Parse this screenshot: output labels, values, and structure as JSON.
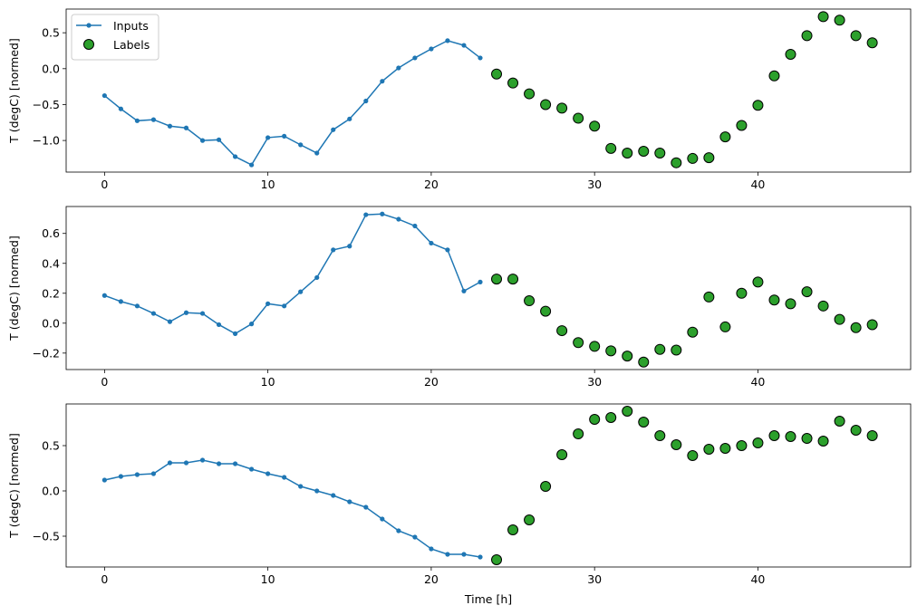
{
  "chart_data": [
    {
      "type": "line+scatter",
      "ylabel": "T (degC) [normed]",
      "xlabel": "",
      "xlim": [
        -2.35,
        49.35
      ],
      "ylim": [
        -1.44,
        0.83
      ],
      "xticks": [
        0,
        10,
        20,
        30,
        40
      ],
      "yticks": [
        -1.0,
        -0.5,
        0.0,
        0.5
      ],
      "legend": {
        "placement": "top-left",
        "entries": [
          "Inputs",
          "Labels"
        ]
      },
      "series": [
        {
          "name": "Inputs",
          "x_start": 0,
          "color": "#1f77b4",
          "values": [
            -0.375,
            -0.56,
            -0.725,
            -0.71,
            -0.8,
            -0.825,
            -1.0,
            -0.99,
            -1.225,
            -1.34,
            -0.96,
            -0.94,
            -1.06,
            -1.175,
            -0.85,
            -0.7,
            -0.45,
            -0.175,
            0.01,
            0.15,
            0.275,
            0.39,
            0.325,
            0.15
          ]
        },
        {
          "name": "Labels",
          "x_start": 24,
          "color": "#2ca02c",
          "values": [
            -0.075,
            -0.2,
            -0.35,
            -0.5,
            -0.55,
            -0.69,
            -0.8,
            -1.11,
            -1.175,
            -1.15,
            -1.175,
            -1.31,
            -1.25,
            -1.24,
            -0.95,
            -0.79,
            -0.51,
            -0.1,
            0.2,
            0.46,
            0.725,
            0.675,
            0.46,
            0.36
          ]
        }
      ]
    },
    {
      "type": "line+scatter",
      "ylabel": "T (degC) [normed]",
      "xlabel": "",
      "xlim": [
        -2.35,
        49.35
      ],
      "ylim": [
        -0.31,
        0.78
      ],
      "xticks": [
        0,
        10,
        20,
        30,
        40
      ],
      "yticks": [
        -0.2,
        0.0,
        0.2,
        0.4,
        0.6
      ],
      "series": [
        {
          "name": "Inputs",
          "x_start": 0,
          "color": "#1f77b4",
          "values": [
            0.185,
            0.145,
            0.115,
            0.065,
            0.01,
            0.07,
            0.065,
            -0.01,
            -0.07,
            -0.005,
            0.13,
            0.115,
            0.21,
            0.305,
            0.49,
            0.515,
            0.725,
            0.73,
            0.695,
            0.65,
            0.535,
            0.49,
            0.215,
            0.275
          ]
        },
        {
          "name": "Labels",
          "x_start": 24,
          "color": "#2ca02c",
          "values": [
            0.295,
            0.295,
            0.15,
            0.08,
            -0.05,
            -0.13,
            -0.155,
            -0.185,
            -0.22,
            -0.26,
            -0.175,
            -0.18,
            -0.06,
            0.175,
            -0.025,
            0.2,
            0.275,
            0.155,
            0.13,
            0.21,
            0.115,
            0.025,
            -0.03,
            -0.01
          ]
        }
      ]
    },
    {
      "type": "line+scatter",
      "ylabel": "T (degC) [normed]",
      "xlabel": "Time [h]",
      "xlim": [
        -2.35,
        49.35
      ],
      "ylim": [
        -0.84,
        0.96
      ],
      "xticks": [
        0,
        10,
        20,
        30,
        40
      ],
      "yticks": [
        -0.5,
        0.0,
        0.5
      ],
      "series": [
        {
          "name": "Inputs",
          "x_start": 0,
          "color": "#1f77b4",
          "values": [
            0.12,
            0.16,
            0.18,
            0.19,
            0.31,
            0.31,
            0.34,
            0.3,
            0.3,
            0.24,
            0.19,
            0.15,
            0.05,
            0.0,
            -0.05,
            -0.12,
            -0.18,
            -0.31,
            -0.44,
            -0.51,
            -0.64,
            -0.7,
            -0.7,
            -0.73
          ]
        },
        {
          "name": "Labels",
          "x_start": 24,
          "color": "#2ca02c",
          "values": [
            -0.76,
            -0.43,
            -0.32,
            0.05,
            0.4,
            0.63,
            0.79,
            0.81,
            0.88,
            0.76,
            0.61,
            0.51,
            0.39,
            0.46,
            0.47,
            0.5,
            0.53,
            0.61,
            0.6,
            0.58,
            0.55,
            0.77,
            0.67,
            0.61
          ]
        }
      ]
    }
  ]
}
